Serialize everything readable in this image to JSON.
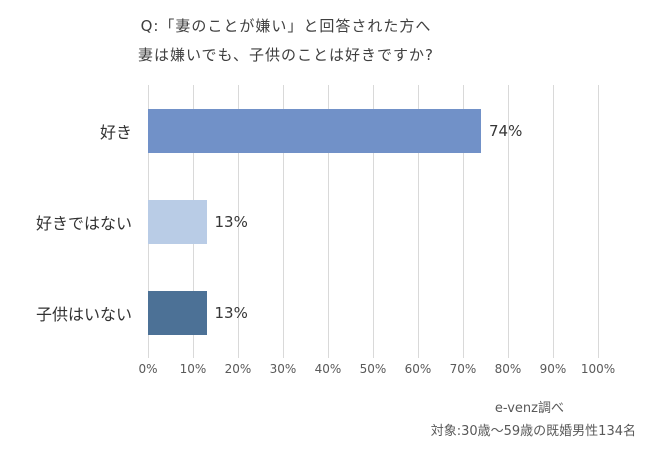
{
  "title": {
    "line1": "Q:「妻のことが嫌い」と回答された方へ",
    "line2": "妻は嫌いでも、子供のことは好きですか?"
  },
  "chart_data": {
    "type": "bar",
    "orientation": "horizontal",
    "title": "Q:「妻のことが嫌い」と回答された方へ 妻は嫌いでも、子供のことは好きですか?",
    "categories": [
      "好き",
      "好きではない",
      "子供はいない"
    ],
    "values": [
      74,
      13,
      13
    ],
    "value_labels": [
      "74%",
      "13%",
      "13%"
    ],
    "bar_colors": [
      "#7191c8",
      "#b9cce6",
      "#4c7196"
    ],
    "xlim": [
      0,
      100
    ],
    "x_tick_labels": [
      "0%",
      "10%",
      "20%",
      "30%",
      "40%",
      "50%",
      "60%",
      "70%",
      "80%",
      "90%",
      "100%"
    ],
    "grid": true,
    "gridline_color": "#d9d9d9",
    "legend": "none"
  },
  "footer": {
    "source": "e-venz調べ",
    "note": "対象:30歳〜59歳の既婚男性134名"
  }
}
